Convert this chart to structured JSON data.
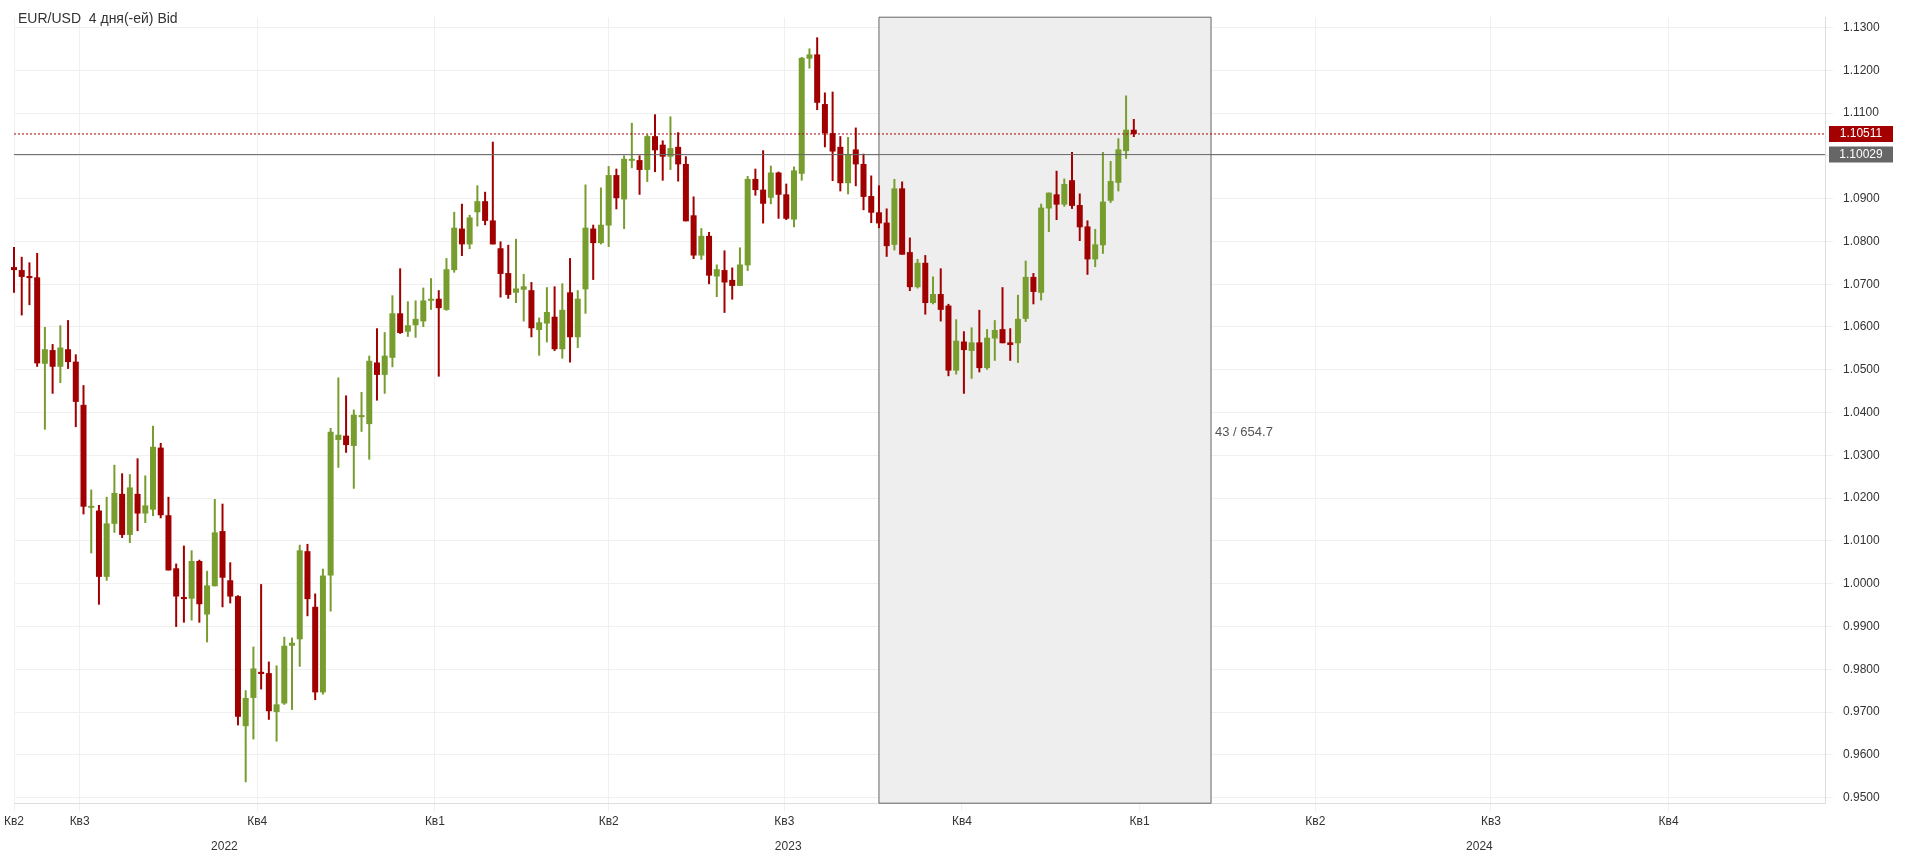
{
  "chart_data": {
    "type": "candlestick",
    "title": "EUR/USD  4 дня(-ей) Bid",
    "x": [
      "2022-05-28",
      "2022-06-01",
      "2022-06-05",
      "2022-06-09",
      "2022-06-13",
      "2022-06-17",
      "2022-06-21",
      "2022-06-25",
      "2022-06-29",
      "2022-07-03",
      "2022-07-07",
      "2022-07-11",
      "2022-07-15",
      "2022-07-19",
      "2022-07-23",
      "2022-07-27",
      "2022-07-31",
      "2022-08-04",
      "2022-08-08",
      "2022-08-12",
      "2022-08-16",
      "2022-08-20",
      "2022-08-24",
      "2022-08-28",
      "2022-09-01",
      "2022-09-05",
      "2022-09-09",
      "2022-09-13",
      "2022-09-17",
      "2022-09-21",
      "2022-09-25",
      "2022-09-29",
      "2022-10-03",
      "2022-10-07",
      "2022-10-11",
      "2022-10-15",
      "2022-10-19",
      "2022-10-23",
      "2022-10-27",
      "2022-10-31",
      "2022-11-04",
      "2022-11-08",
      "2022-11-12",
      "2022-11-16",
      "2022-11-20",
      "2022-11-24",
      "2022-11-28",
      "2022-12-02",
      "2022-12-06",
      "2022-12-10",
      "2022-12-14",
      "2022-12-18",
      "2022-12-22",
      "2022-12-26",
      "2022-12-30",
      "2023-01-03",
      "2023-01-07",
      "2023-01-11",
      "2023-01-15",
      "2023-01-19",
      "2023-01-23",
      "2023-01-27",
      "2023-01-31",
      "2023-02-04",
      "2023-02-08",
      "2023-02-12",
      "2023-02-16",
      "2023-02-20",
      "2023-02-24",
      "2023-02-28",
      "2023-03-04",
      "2023-03-08",
      "2023-03-12",
      "2023-03-16",
      "2023-03-20",
      "2023-03-24",
      "2023-03-28",
      "2023-04-01",
      "2023-04-05",
      "2023-04-09",
      "2023-04-13",
      "2023-04-17",
      "2023-04-21",
      "2023-04-25",
      "2023-04-29",
      "2023-05-03",
      "2023-05-07",
      "2023-05-11",
      "2023-05-15",
      "2023-05-19",
      "2023-05-23",
      "2023-05-27",
      "2023-05-31",
      "2023-06-04",
      "2023-06-08",
      "2023-06-12",
      "2023-06-16",
      "2023-06-20",
      "2023-06-24",
      "2023-06-28",
      "2023-07-02",
      "2023-07-06",
      "2023-07-10",
      "2023-07-14",
      "2023-07-18",
      "2023-07-22",
      "2023-07-26",
      "2023-07-30",
      "2023-08-03",
      "2023-08-07",
      "2023-08-11",
      "2023-08-15",
      "2023-08-19",
      "2023-08-23",
      "2023-08-27",
      "2023-08-31",
      "2023-09-04",
      "2023-09-08",
      "2023-09-12",
      "2023-09-16",
      "2023-09-20",
      "2023-09-24",
      "2023-09-28",
      "2023-10-02",
      "2023-10-06",
      "2023-10-10",
      "2023-10-14",
      "2023-10-18",
      "2023-10-22",
      "2023-10-26",
      "2023-10-30",
      "2023-11-03",
      "2023-11-07",
      "2023-11-11",
      "2023-11-15",
      "2023-11-19",
      "2023-11-23",
      "2023-11-27",
      "2023-12-01",
      "2023-12-05",
      "2023-12-09",
      "2023-12-13",
      "2023-12-17",
      "2023-12-21",
      "2023-12-25",
      "2023-12-29"
    ],
    "ohlc": [
      [
        1.074,
        1.0787,
        1.068,
        1.0733
      ],
      [
        1.0733,
        1.0764,
        1.0627,
        1.0717
      ],
      [
        1.0719,
        1.0751,
        1.0651,
        1.0716
      ],
      [
        1.0716,
        1.0773,
        1.0507,
        1.0515
      ],
      [
        1.0514,
        1.06,
        1.036,
        1.0548
      ],
      [
        1.0546,
        1.056,
        1.0444,
        1.0507
      ],
      [
        1.0507,
        1.0604,
        1.0469,
        1.0552
      ],
      [
        1.0548,
        1.0616,
        1.0502,
        1.0518
      ],
      [
        1.0519,
        1.0536,
        1.0366,
        1.0425
      ],
      [
        1.0418,
        1.0464,
        1.0162,
        1.018
      ],
      [
        1.018,
        1.022,
        1.0071,
        1.0182
      ],
      [
        1.0171,
        1.0184,
        0.9951,
        1.0016
      ],
      [
        1.0016,
        1.0203,
        1.0007,
        1.0141
      ],
      [
        1.014,
        1.0278,
        1.0119,
        1.0212
      ],
      [
        1.021,
        1.0258,
        1.0107,
        1.0114
      ],
      [
        1.0114,
        1.0256,
        1.0095,
        1.0225
      ],
      [
        1.021,
        1.0293,
        1.0123,
        1.0164
      ],
      [
        1.0164,
        1.0253,
        1.0142,
        1.0183
      ],
      [
        1.0173,
        1.0369,
        1.0158,
        1.032
      ],
      [
        1.0318,
        1.0329,
        1.0153,
        1.016
      ],
      [
        1.016,
        1.0203,
        1.0031,
        1.0031
      ],
      [
        1.0036,
        1.0047,
        0.9899,
        0.997
      ],
      [
        0.9969,
        1.0089,
        0.9909,
        0.9964
      ],
      [
        0.9965,
        1.0078,
        0.9914,
        1.0053
      ],
      [
        1.0053,
        1.0056,
        0.9909,
        0.9952
      ],
      [
        0.9928,
        1.003,
        0.9863,
        0.9996
      ],
      [
        0.9994,
        1.0198,
        0.9994,
        1.012
      ],
      [
        1.0123,
        1.0187,
        0.9945,
        1.0014
      ],
      [
        1.0008,
        1.005,
        0.9954,
        0.997
      ],
      [
        0.9971,
        0.9973,
        0.9669,
        0.9689
      ],
      [
        0.9667,
        0.9751,
        0.9536,
        0.9733
      ],
      [
        0.9733,
        0.9853,
        0.9636,
        0.9802
      ],
      [
        0.9794,
        0.9999,
        0.9753,
        0.9789
      ],
      [
        0.9791,
        0.9818,
        0.9682,
        0.9702
      ],
      [
        0.97,
        0.9809,
        0.9631,
        0.9718
      ],
      [
        0.972,
        0.9876,
        0.9717,
        0.9855
      ],
      [
        0.9855,
        0.9874,
        0.9705,
        0.9862
      ],
      [
        0.987,
        1.0091,
        0.9806,
        1.0078
      ],
      [
        1.0076,
        1.0093,
        0.9924,
        0.9964
      ],
      [
        0.9946,
        0.9977,
        0.9728,
        0.9746
      ],
      [
        0.9746,
        1.0035,
        0.9741,
        1.0019
      ],
      [
        1.0019,
        1.0364,
        0.9935,
        1.0355
      ],
      [
        1.0336,
        1.0482,
        1.0271,
        1.0348
      ],
      [
        1.0346,
        1.044,
        1.0306,
        1.0324
      ],
      [
        1.0322,
        1.0407,
        1.0222,
        1.0395
      ],
      [
        1.0393,
        1.0448,
        1.0355,
        1.0394
      ],
      [
        1.0373,
        1.0533,
        1.029,
        1.0521
      ],
      [
        1.0517,
        1.0597,
        1.0428,
        1.0488
      ],
      [
        1.0488,
        1.0588,
        1.0444,
        1.0533
      ],
      [
        1.0528,
        1.0674,
        1.0506,
        1.0632
      ],
      [
        1.0632,
        1.0737,
        1.0584,
        1.0586
      ],
      [
        1.0589,
        1.066,
        1.0577,
        1.0604
      ],
      [
        1.0604,
        1.0662,
        1.0575,
        1.0619
      ],
      [
        1.0613,
        1.0692,
        1.06,
        1.0662
      ],
      [
        1.0662,
        1.0714,
        1.064,
        1.0666
      ],
      [
        1.0666,
        1.0686,
        1.0484,
        1.0644
      ],
      [
        1.064,
        1.0761,
        1.0638,
        1.0735
      ],
      [
        1.0733,
        1.0869,
        1.0727,
        1.0832
      ],
      [
        1.083,
        1.0888,
        1.0766,
        1.0793
      ],
      [
        1.0793,
        1.0862,
        1.0782,
        1.0856
      ],
      [
        1.0868,
        1.0931,
        1.0835,
        1.0894
      ],
      [
        1.0894,
        1.0916,
        1.0838,
        1.0848
      ],
      [
        1.0849,
        1.1033,
        1.0793,
        1.0793
      ],
      [
        1.0784,
        1.08,
        1.0669,
        1.0724
      ],
      [
        1.0726,
        1.0792,
        1.0666,
        1.0675
      ],
      [
        1.068,
        1.0806,
        1.0656,
        1.069
      ],
      [
        1.0687,
        1.0724,
        1.0613,
        1.0695
      ],
      [
        1.0686,
        1.0705,
        1.0576,
        1.0597
      ],
      [
        1.0593,
        1.0622,
        1.0533,
        1.0611
      ],
      [
        1.0608,
        1.0693,
        1.0564,
        1.0635
      ],
      [
        1.0624,
        1.0695,
        1.0544,
        1.0548
      ],
      [
        1.0548,
        1.0702,
        1.0526,
        1.064
      ],
      [
        1.0681,
        1.0761,
        1.0517,
        1.0576
      ],
      [
        1.0576,
        1.0686,
        1.0551,
        1.0666
      ],
      [
        1.0688,
        1.0933,
        1.0631,
        1.0832
      ],
      [
        1.083,
        1.0839,
        1.071,
        1.0796
      ],
      [
        1.0796,
        1.0926,
        1.0793,
        1.0839
      ],
      [
        1.0837,
        1.0976,
        1.0787,
        1.0955
      ],
      [
        1.0955,
        1.097,
        1.0875,
        1.0901
      ],
      [
        1.0898,
        1.1001,
        1.0829,
        1.0993
      ],
      [
        1.0991,
        1.1077,
        1.0971,
        1.0993
      ],
      [
        1.099,
        1.1001,
        1.0909,
        1.0967
      ],
      [
        1.0967,
        1.105,
        1.0939,
        1.1046
      ],
      [
        1.1046,
        1.1097,
        1.0962,
        1.1013
      ],
      [
        1.1026,
        1.1036,
        1.0942,
        1.0998
      ],
      [
        1.0998,
        1.1092,
        1.0967,
        1.1018
      ],
      [
        1.1021,
        1.1055,
        1.094,
        1.098
      ],
      [
        1.0981,
        1.0999,
        1.0847,
        1.0847
      ],
      [
        1.0861,
        1.0905,
        1.0759,
        1.0767
      ],
      [
        1.0767,
        1.0831,
        1.0757,
        1.0813
      ],
      [
        1.0813,
        1.0822,
        1.07,
        1.072
      ],
      [
        1.0718,
        1.0746,
        1.067,
        1.0735
      ],
      [
        1.0733,
        1.0779,
        1.0633,
        1.0704
      ],
      [
        1.071,
        1.0739,
        1.0664,
        1.0696
      ],
      [
        1.0696,
        1.0786,
        1.0696,
        1.0746
      ],
      [
        1.0744,
        1.0953,
        1.0731,
        1.0946
      ],
      [
        1.0946,
        1.097,
        1.0907,
        1.092
      ],
      [
        1.0921,
        1.1013,
        1.0842,
        1.0888
      ],
      [
        1.0902,
        1.0977,
        1.0887,
        1.0961
      ],
      [
        1.0961,
        1.0963,
        1.0853,
        1.0909
      ],
      [
        1.091,
        1.0935,
        1.085,
        1.0853
      ],
      [
        1.0851,
        1.0975,
        1.0833,
        1.0966
      ],
      [
        1.0958,
        1.1231,
        1.0942,
        1.1229
      ],
      [
        1.1227,
        1.1251,
        1.1204,
        1.1237
      ],
      [
        1.1237,
        1.1277,
        1.1107,
        1.1124
      ],
      [
        1.1121,
        1.1148,
        1.102,
        1.1053
      ],
      [
        1.1053,
        1.115,
        1.0941,
        1.101
      ],
      [
        1.1021,
        1.1046,
        1.0917,
        1.0936
      ],
      [
        1.0936,
        1.1044,
        1.091,
        1.1003
      ],
      [
        1.1015,
        1.1066,
        1.0929,
        1.098
      ],
      [
        1.0981,
        1.1005,
        1.0873,
        1.0904
      ],
      [
        1.0906,
        1.0954,
        1.0843,
        1.0867
      ],
      [
        1.0868,
        1.0931,
        1.0831,
        1.0842
      ],
      [
        1.0844,
        1.0877,
        1.0764,
        1.0789
      ],
      [
        1.0792,
        1.0946,
        1.0779,
        1.0924
      ],
      [
        1.0924,
        1.094,
        1.0769,
        1.0769
      ],
      [
        1.0775,
        1.0809,
        1.0684,
        1.0693
      ],
      [
        1.0693,
        1.0759,
        1.069,
        1.075
      ],
      [
        1.075,
        1.0768,
        1.0629,
        1.0656
      ],
      [
        1.0656,
        1.0718,
        1.0653,
        1.0677
      ],
      [
        1.0677,
        1.0737,
        1.0613,
        1.064
      ],
      [
        1.065,
        1.0654,
        1.0485,
        1.0498
      ],
      [
        1.0498,
        1.0618,
        1.0489,
        1.0568
      ],
      [
        1.0566,
        1.059,
        1.0444,
        1.0546
      ],
      [
        1.0544,
        1.0599,
        1.0479,
        1.0564
      ],
      [
        1.0564,
        1.064,
        1.0494,
        1.0504
      ],
      [
        1.0504,
        1.0595,
        1.05,
        1.0575
      ],
      [
        1.0573,
        1.0616,
        1.0521,
        1.0593
      ],
      [
        1.0595,
        1.0693,
        1.0562,
        1.0562
      ],
      [
        1.0564,
        1.0597,
        1.0521,
        1.0558
      ],
      [
        1.0562,
        1.0675,
        1.0516,
        1.0619
      ],
      [
        1.0619,
        1.0755,
        1.0612,
        1.0717
      ],
      [
        1.0717,
        1.0726,
        1.0653,
        1.0682
      ],
      [
        1.068,
        1.0888,
        1.0662,
        1.0879
      ],
      [
        1.0877,
        1.0914,
        1.0822,
        1.0914
      ],
      [
        1.091,
        1.0965,
        1.085,
        1.0886
      ],
      [
        1.0886,
        1.0947,
        1.0881,
        1.0934
      ],
      [
        1.0943,
        1.1009,
        1.0876,
        1.0883
      ],
      [
        1.0885,
        1.0912,
        1.0801,
        1.0833
      ],
      [
        1.0835,
        1.0849,
        1.0722,
        1.0758
      ],
      [
        1.0758,
        1.0829,
        1.074,
        1.0793
      ],
      [
        1.0791,
        1.1009,
        1.0771,
        1.0893
      ],
      [
        1.0895,
        1.0988,
        1.089,
        1.0941
      ],
      [
        1.0937,
        1.1041,
        1.0917,
        1.1015
      ],
      [
        1.1011,
        1.1141,
        1.0993,
        1.1061
      ],
      [
        1.1061,
        1.1086,
        1.1044,
        1.1051
      ]
    ],
    "xlim": [
      "2022-05-28",
      "2024-12-21"
    ],
    "xticks": [
      {
        "value": "2022-05-28",
        "label": "Кв2"
      },
      {
        "value": "2022-07-01",
        "label": "Кв3"
      },
      {
        "value": "2022-10-01",
        "label": "Кв4"
      },
      {
        "value": "2023-01-01",
        "label": "Кв1"
      },
      {
        "value": "2023-04-01",
        "label": "Кв2"
      },
      {
        "value": "2023-07-01",
        "label": "Кв3"
      },
      {
        "value": "2023-10-01",
        "label": "Кв4"
      },
      {
        "value": "2024-01-01",
        "label": "Кв1"
      },
      {
        "value": "2024-04-01",
        "label": "Кв2"
      },
      {
        "value": "2024-07-01",
        "label": "Кв3"
      },
      {
        "value": "2024-10-01",
        "label": "Кв4"
      }
    ],
    "ylim": [
      0.9487,
      1.1324
    ],
    "yticks": [
      {
        "value": 0.95,
        "label": "0.9500"
      },
      {
        "value": 0.96,
        "label": "0.9600"
      },
      {
        "value": 0.97,
        "label": "0.9700"
      },
      {
        "value": 0.98,
        "label": "0.9800"
      },
      {
        "value": 0.99,
        "label": "0.9900"
      },
      {
        "value": 1.0,
        "label": "1.0000"
      },
      {
        "value": 1.01,
        "label": "1.0100"
      },
      {
        "value": 1.02,
        "label": "1.0200"
      },
      {
        "value": 1.03,
        "label": "1.0300"
      },
      {
        "value": 1.04,
        "label": "1.0400"
      },
      {
        "value": 1.05,
        "label": "1.0500"
      },
      {
        "value": 1.06,
        "label": "1.0600"
      },
      {
        "value": 1.07,
        "label": "1.0700"
      },
      {
        "value": 1.08,
        "label": "1.0800"
      },
      {
        "value": 1.09,
        "label": "1.0900"
      },
      {
        "value": 1.1,
        "label": null
      },
      {
        "value": 1.11,
        "label": "1.1100"
      },
      {
        "value": 1.12,
        "label": "1.1200"
      },
      {
        "value": 1.13,
        "label": "1.1300"
      }
    ],
    "grid": true,
    "ref_lines": [
      {
        "axis": "y",
        "value": 1.10511,
        "label": "1.10511",
        "color": "#a50000",
        "line_style": "dotted"
      },
      {
        "axis": "y",
        "value": 1.10029,
        "label": "1.10029",
        "color": "#666666"
      }
    ],
    "bands": [
      {
        "axis": "x",
        "from": "2023-08-19",
        "to": "2024-02-07",
        "color": "#eeeeee"
      }
    ],
    "x2lim": [
      "2022-05-28",
      "2024-12-21"
    ],
    "x2ticks": [
      {
        "value": "2022-09-14",
        "label": "2022"
      },
      {
        "value": "2023-07-03",
        "label": "2023"
      },
      {
        "value": "2024-06-25",
        "label": "2024"
      }
    ],
    "annotations": [
      "43 / 654.7"
    ]
  }
}
